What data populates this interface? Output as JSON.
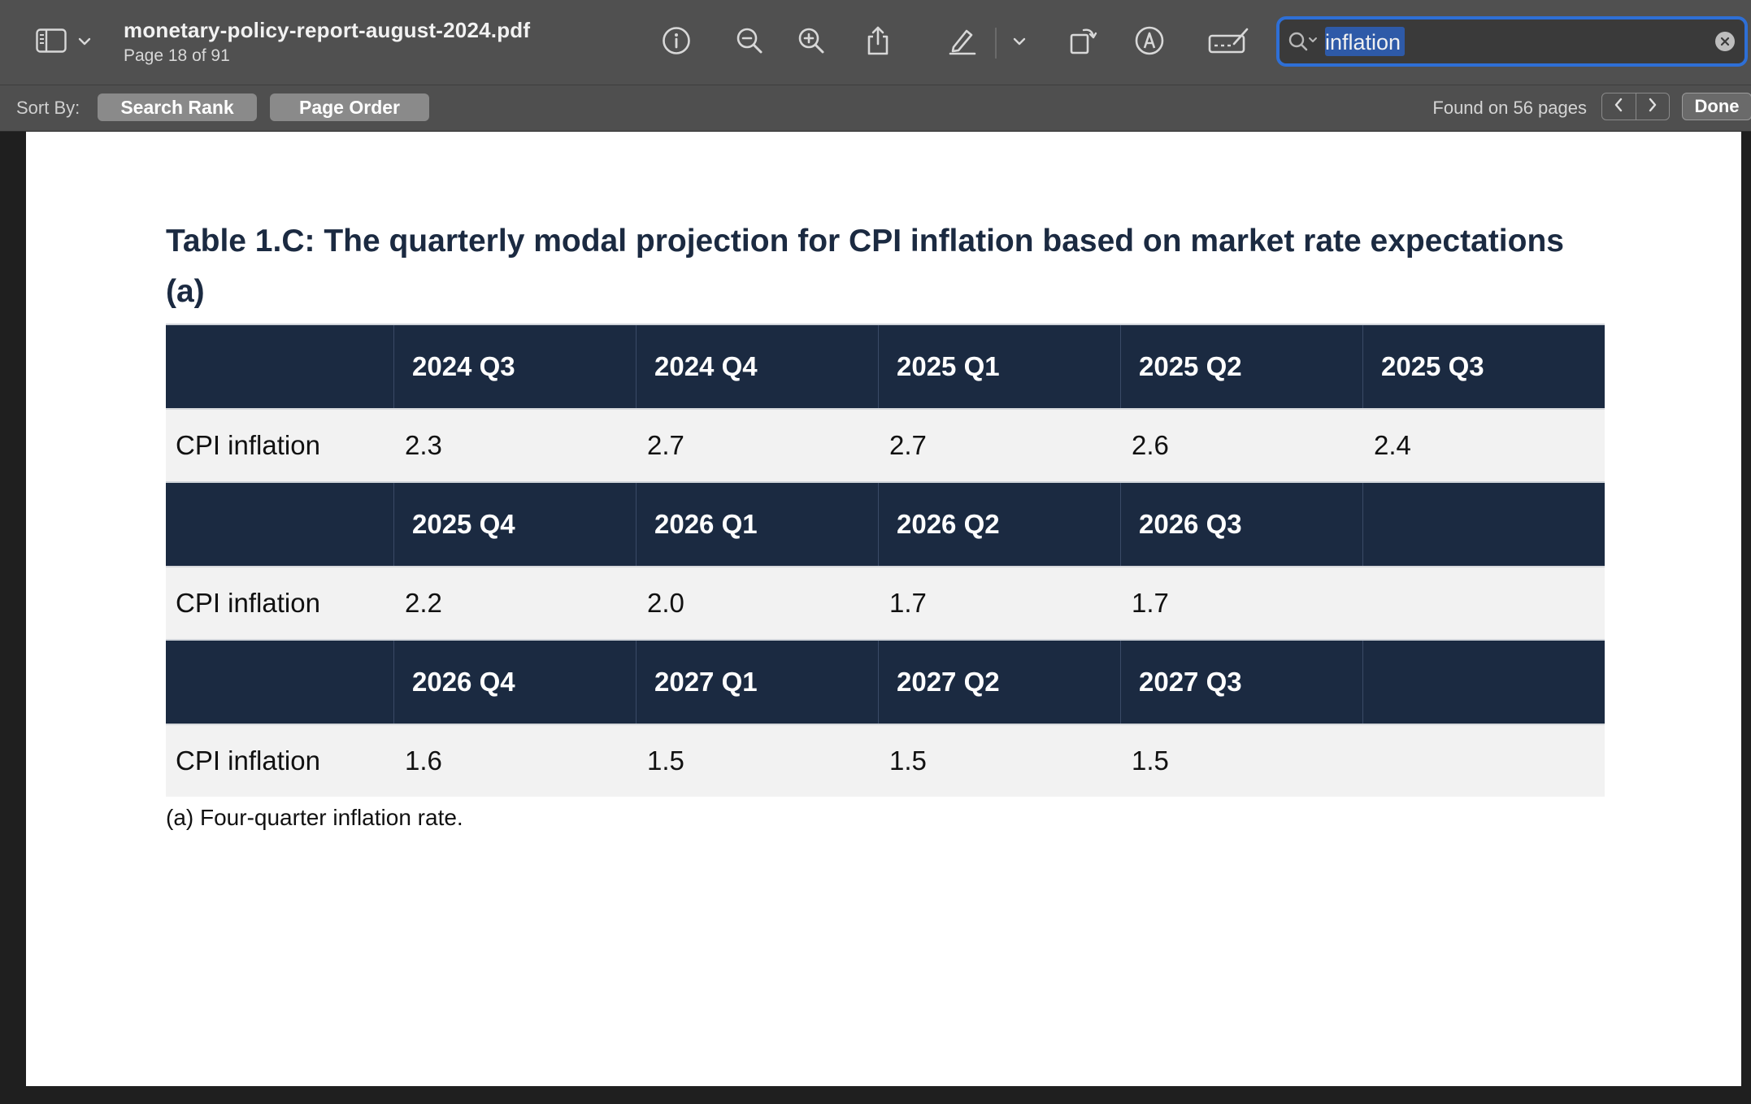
{
  "window": {
    "filename": "monetary-policy-report-august-2024.pdf",
    "page_indicator": "Page 18 of 91"
  },
  "toolbar": {
    "icons": [
      "sidebar-icon",
      "chevron-down-icon",
      "info-icon",
      "zoom-out-icon",
      "zoom-in-icon",
      "share-icon",
      "highlight-pen-icon",
      "chevron-down-icon",
      "rotate-icon",
      "markup-icon",
      "signature-icon"
    ]
  },
  "search": {
    "value": "inflation",
    "placeholder": "Search"
  },
  "findbar": {
    "sort_label": "Sort By:",
    "sort_search_rank": "Search Rank",
    "sort_page_order": "Page Order",
    "found_text": "Found on 56 pages",
    "done_label": "Done"
  },
  "document": {
    "title": "Table 1.C: The quarterly modal projection for CPI inflation based on market rate expectations",
    "title_suffix": "(a)",
    "footnote": "(a) Four-quarter inflation rate.",
    "table": {
      "blocks": [
        {
          "headers": [
            "",
            "2024 Q3",
            "2024 Q4",
            "2025 Q1",
            "2025 Q2",
            "2025 Q3"
          ],
          "row_label": "CPI inflation",
          "values": [
            "2.3",
            "2.7",
            "2.7",
            "2.6",
            "2.4"
          ]
        },
        {
          "headers": [
            "",
            "2025 Q4",
            "2026 Q1",
            "2026 Q2",
            "2026 Q3",
            ""
          ],
          "row_label": "CPI inflation",
          "values": [
            "2.2",
            "2.0",
            "1.7",
            "1.7",
            ""
          ]
        },
        {
          "headers": [
            "",
            "2026 Q4",
            "2027 Q1",
            "2027 Q2",
            "2027 Q3",
            ""
          ],
          "row_label": "CPI inflation",
          "values": [
            "1.6",
            "1.5",
            "1.5",
            "1.5",
            ""
          ]
        }
      ]
    }
  },
  "colors": {
    "accent": "#2e6fd6",
    "table_header": "#1b2a41",
    "toolbar": "#505050"
  }
}
